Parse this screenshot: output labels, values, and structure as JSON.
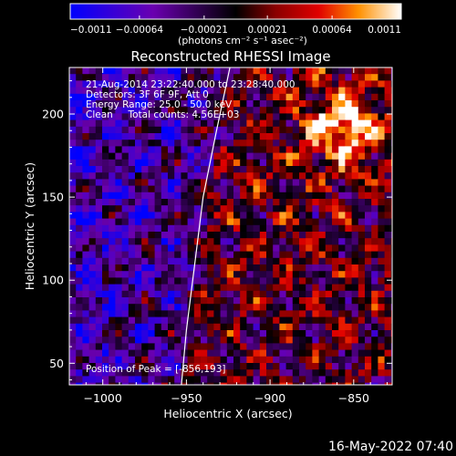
{
  "chart_data": {
    "type": "heatmap",
    "title": "Reconstructed RHESSI Image",
    "xlabel": "Heliocentric X (arcsec)",
    "ylabel": "Heliocentric Y (arcsec)",
    "xlim": [
      -1020,
      -827
    ],
    "ylim": [
      37,
      228
    ],
    "x_ticks": [
      -1000,
      -950,
      -900,
      -850
    ],
    "y_ticks": [
      50,
      100,
      150,
      200
    ],
    "x_tick_labels": [
      "−1000",
      "−950",
      "−900",
      "−850"
    ],
    "y_tick_labels": [
      "50",
      "100",
      "150",
      "200"
    ],
    "colorbar": {
      "ticks": [
        -0.0011,
        -0.00064,
        -0.00021,
        0.00021,
        0.00064,
        0.0011
      ],
      "tick_labels": [
        "−0.0011",
        "−0.00064",
        "−0.00021",
        "0.00021",
        "0.00064",
        "0.0011"
      ],
      "unit_label": "(photons cm⁻² s⁻¹ asec⁻²)",
      "range": [
        -0.0011,
        0.0011
      ]
    },
    "annotations": [
      "21-Aug-2014 23:22:40.000 to 23:28:40.000",
      "Detectors: 3F 6F 9F, Att 0",
      "Energy Range: 25.0 - 50.0 keV",
      "Clean     Total counts: 4.56E+03"
    ],
    "peak_label": "Position of Peak = [-856,193]",
    "peak": [
      -856,
      193
    ],
    "limb_arc": [
      [
        -924,
        228
      ],
      [
        -932,
        190
      ],
      [
        -940,
        150
      ],
      [
        -945,
        110
      ],
      [
        -950,
        70
      ],
      [
        -953,
        37
      ]
    ],
    "grid": false
  },
  "footer": {
    "date": "16-May-2022 07:40"
  }
}
